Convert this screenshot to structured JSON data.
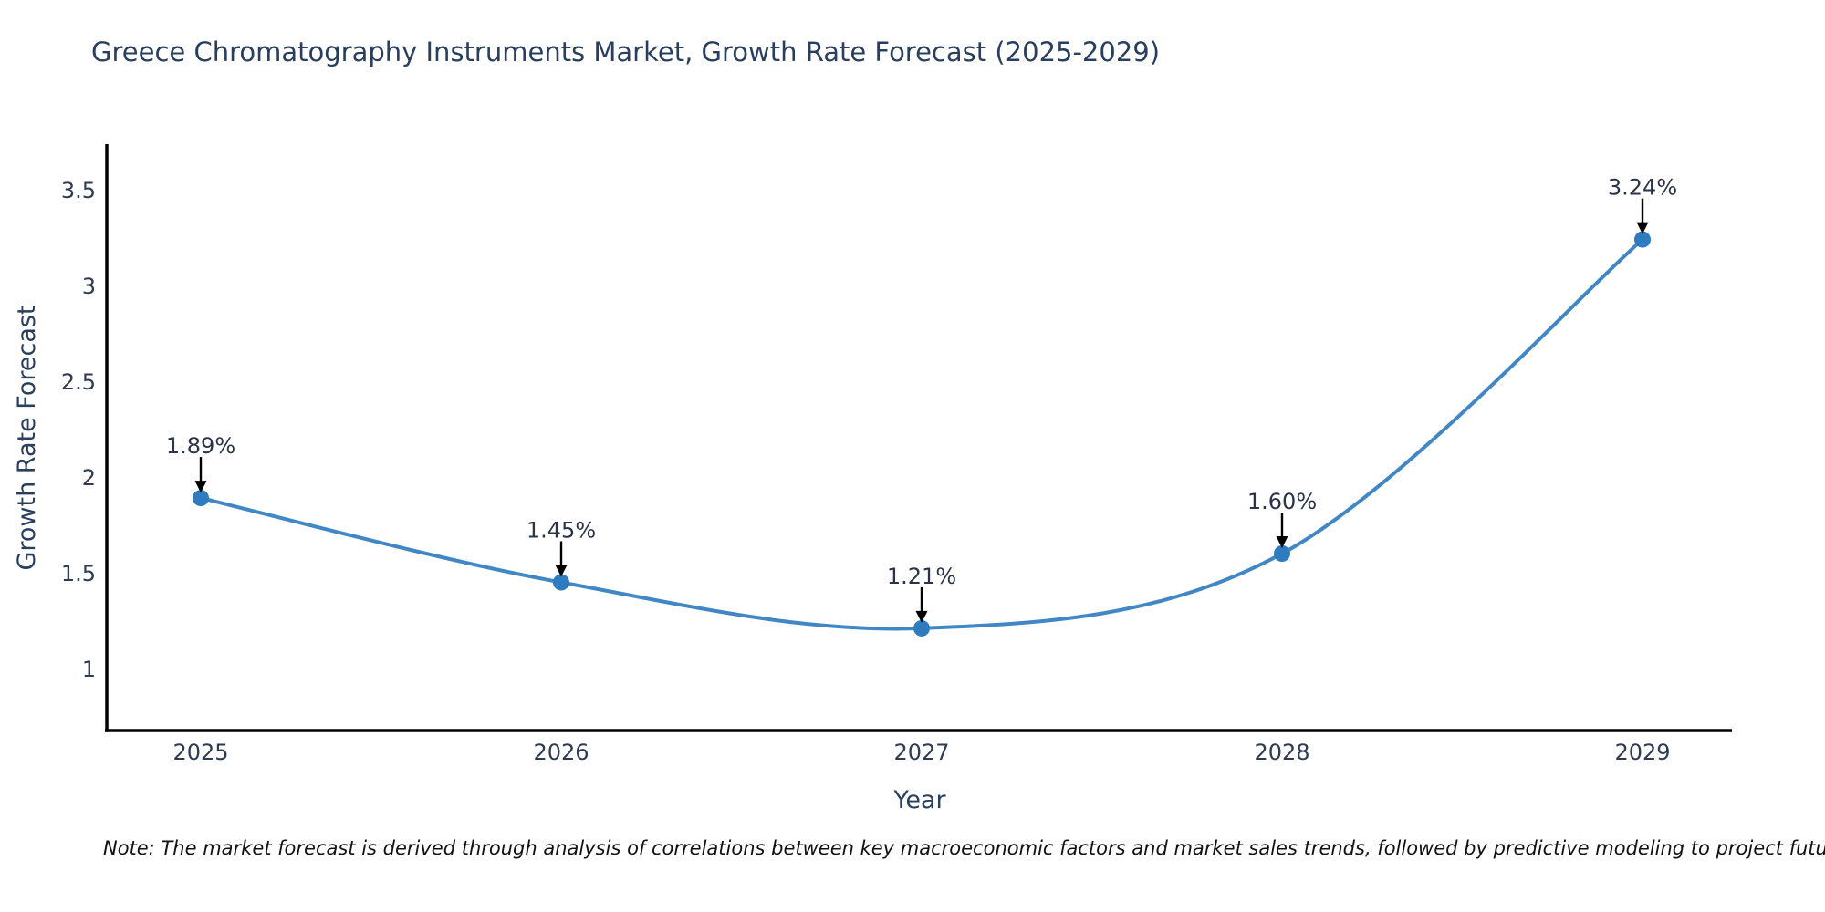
{
  "page": {
    "background": "#ffffff"
  },
  "chart_data": {
    "type": "line",
    "title": "Greece Chromatography Instruments Market, Growth Rate Forecast (2025-2029)",
    "xlabel": "Year",
    "ylabel": "Growth Rate Forecast",
    "categories": [
      "2025",
      "2026",
      "2027",
      "2028",
      "2029"
    ],
    "values": [
      1.89,
      1.45,
      1.21,
      1.6,
      3.24
    ],
    "point_labels": [
      "1.89%",
      "1.45%",
      "1.21%",
      "1.60%",
      "3.24%"
    ],
    "y_ticks": [
      "1",
      "1.5",
      "2",
      "2.5",
      "3",
      "3.5"
    ],
    "ylim": [
      0.68,
      3.74
    ],
    "line_shape": "spline",
    "grid": false,
    "legend": false,
    "colors": {
      "line": "#4287c5",
      "marker": "#2e7bbf",
      "text": "#2a3f5f",
      "annotation_text": "#2a3347",
      "arrow": "#000000",
      "axis": "#000000"
    }
  },
  "note": {
    "text": "Note: The market forecast is derived through analysis of correlations between key macroeconomic factors and market sales trends, followed by predictive modeling to project future sales"
  }
}
